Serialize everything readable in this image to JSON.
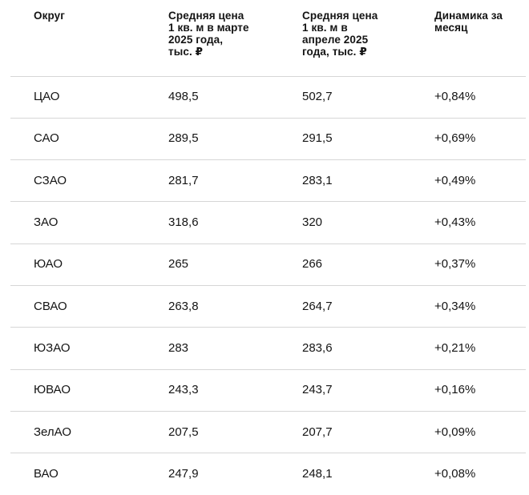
{
  "colors": {
    "background": "#ffffff",
    "text": "#141414",
    "divider": "#d6d6d6"
  },
  "chart_data": {
    "type": "table",
    "title": "",
    "columns": [
      {
        "label": "Округ",
        "display": "Округ"
      },
      {
        "label": "Средняя цена 1 кв. м в марте 2025 года, тыс. ₽",
        "display": "Средняя цена\n1 кв. м в марте\n2025 года,\nтыс. ₽"
      },
      {
        "label": "Средняя цена 1 кв. м в апреле 2025 года, тыс. ₽",
        "display": "Средняя цена\n1 кв. м в\nапреле 2025\nгода, тыс. ₽"
      },
      {
        "label": "Динамика за месяц",
        "display": "Динамика за\nмесяц"
      }
    ],
    "rows": [
      {
        "cells": [
          "ЦАО",
          "498,5",
          "502,7",
          "+0,84%"
        ]
      },
      {
        "cells": [
          "САО",
          "289,5",
          "291,5",
          "+0,69%"
        ]
      },
      {
        "cells": [
          "СЗАО",
          "281,7",
          "283,1",
          "+0,49%"
        ]
      },
      {
        "cells": [
          "ЗАО",
          "318,6",
          "320",
          "+0,43%"
        ]
      },
      {
        "cells": [
          "ЮАО",
          "265",
          "266",
          "+0,37%"
        ]
      },
      {
        "cells": [
          "СВАО",
          "263,8",
          "264,7",
          "+0,34%"
        ]
      },
      {
        "cells": [
          "ЮЗАО",
          "283",
          "283,6",
          "+0,21%"
        ]
      },
      {
        "cells": [
          "ЮВАО",
          "243,3",
          "243,7",
          "+0,16%"
        ]
      },
      {
        "cells": [
          "ЗелАО",
          "207,5",
          "207,7",
          "+0,09%"
        ]
      },
      {
        "cells": [
          "ВАО",
          "247,9",
          "248,1",
          "+0,08%"
        ]
      }
    ]
  }
}
